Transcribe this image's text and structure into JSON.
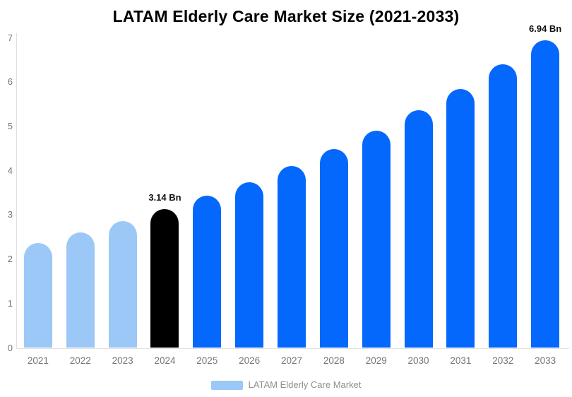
{
  "chart_data": {
    "type": "bar",
    "title": "LATAM Elderly Care Market Size (2021-2033)",
    "xlabel": "",
    "ylabel": "",
    "categories": [
      "2021",
      "2022",
      "2023",
      "2024",
      "2025",
      "2026",
      "2027",
      "2028",
      "2029",
      "2030",
      "2031",
      "2032",
      "2033"
    ],
    "values": [
      2.37,
      2.61,
      2.86,
      3.14,
      3.43,
      3.74,
      4.1,
      4.49,
      4.9,
      5.36,
      5.85,
      6.4,
      6.94
    ],
    "bar_colors": [
      "#9CC8F7",
      "#9CC8F7",
      "#9CC8F7",
      "#000000",
      "#0568FC",
      "#0568FC",
      "#0568FC",
      "#0568FC",
      "#0568FC",
      "#0568FC",
      "#0568FC",
      "#0568FC",
      "#0568FC"
    ],
    "annotations": [
      {
        "category": "2024",
        "text": "3.14 Bn"
      },
      {
        "category": "2033",
        "text": "6.94 Bn"
      }
    ],
    "ylim": [
      0,
      7
    ],
    "yticks": [
      0,
      1,
      2,
      3,
      4,
      5,
      6,
      7
    ],
    "grid": false,
    "legend": {
      "position": "bottom",
      "entries": [
        {
          "label": "LATAM Elderly Care Market",
          "color": "#9CC8F7"
        }
      ]
    }
  },
  "colors": {
    "background": "#FFFFFF",
    "historical_bar": "#9CC8F7",
    "highlight_bar": "#000000",
    "forecast_bar": "#0568FC",
    "axis_line": "#E0E0E0",
    "tick_text": "#757575",
    "legend_text": "#8E8E8E",
    "annotation_text": "#111111",
    "title_text": "#000000"
  }
}
